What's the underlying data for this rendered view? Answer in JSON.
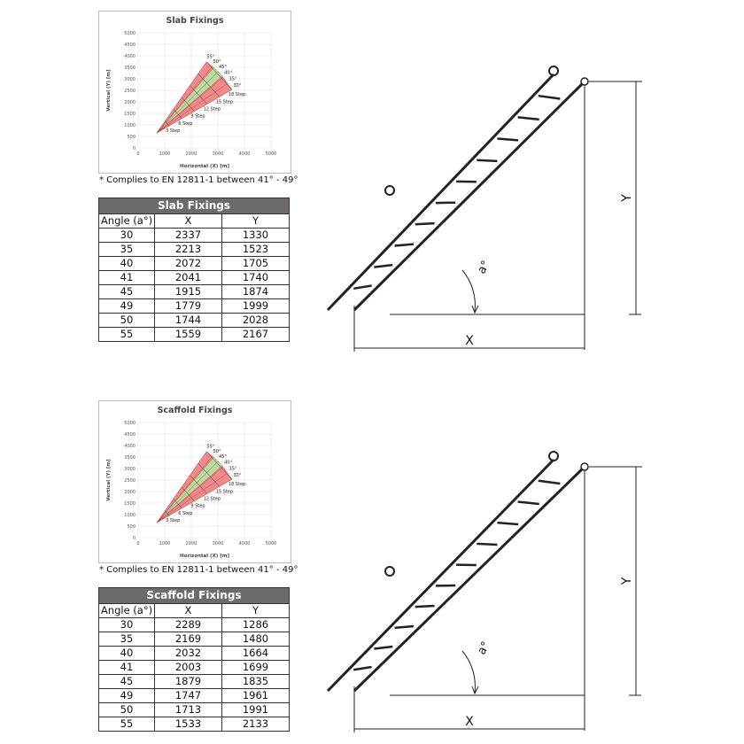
{
  "panels": [
    {
      "key": "slab",
      "chart": {
        "title": "Slab Fixings",
        "xlabel": "Horizontal (X) [m]",
        "ylabel": "Vertical (Y) [m]",
        "x_ticks": [
          "0",
          "1000",
          "2000",
          "3000",
          "4000",
          "5000"
        ],
        "y_ticks": [
          "0",
          "500",
          "1000",
          "1500",
          "2000",
          "2500",
          "3000",
          "3500",
          "4000",
          "4500",
          "5000"
        ],
        "angle_labels": [
          "55°",
          "50°",
          "45°",
          "40°",
          "35°",
          "30°"
        ],
        "step_labels": [
          "3 Step",
          "6 Step",
          "9 Step",
          "12 Step",
          "15 Step",
          "18 Step"
        ]
      },
      "note": "* Complies to EN 12811-1 between 41° - 49°",
      "table": {
        "title": "Slab Fixings",
        "headers": [
          "Angle (a°)",
          "X",
          "Y"
        ],
        "rows": [
          [
            "30",
            "2337",
            "1330"
          ],
          [
            "35",
            "2213",
            "1523"
          ],
          [
            "40",
            "2072",
            "1705"
          ],
          [
            "41",
            "2041",
            "1740"
          ],
          [
            "45",
            "1915",
            "1874"
          ],
          [
            "49",
            "1779",
            "1999"
          ],
          [
            "50",
            "1744",
            "2028"
          ],
          [
            "55",
            "1559",
            "2167"
          ]
        ]
      },
      "diagram": {
        "label_x": "X",
        "label_y": "Y",
        "label_angle": "a°"
      }
    },
    {
      "key": "scaffold",
      "chart": {
        "title": "Scaffold Fixings",
        "xlabel": "Horizontal (X) [m]",
        "ylabel": "Vertical (Y) [m]",
        "x_ticks": [
          "0",
          "1000",
          "2000",
          "3000",
          "4000",
          "5000"
        ],
        "y_ticks": [
          "0",
          "500",
          "1000",
          "1500",
          "2000",
          "2500",
          "3000",
          "3500",
          "4000",
          "4500",
          "5000"
        ],
        "angle_labels": [
          "55°",
          "50°",
          "45°",
          "40°",
          "35°",
          "30°"
        ],
        "step_labels": [
          "3 Step",
          "6 Step",
          "9 Step",
          "12 Step",
          "15 Step",
          "18 Step"
        ]
      },
      "note": "* Complies to EN 12811-1 between 41° - 49°",
      "table": {
        "title": "Scaffold Fixings",
        "headers": [
          "Angle (a°)",
          "X",
          "Y"
        ],
        "rows": [
          [
            "30",
            "2289",
            "1286"
          ],
          [
            "35",
            "2169",
            "1480"
          ],
          [
            "40",
            "2032",
            "1664"
          ],
          [
            "41",
            "2003",
            "1699"
          ],
          [
            "45",
            "1879",
            "1835"
          ],
          [
            "49",
            "1747",
            "1961"
          ],
          [
            "50",
            "1713",
            "1991"
          ],
          [
            "55",
            "1533",
            "2133"
          ]
        ]
      },
      "diagram": {
        "label_x": "X",
        "label_y": "Y",
        "label_angle": "a°"
      }
    }
  ],
  "colors": {
    "red_zone": "#f08a8a",
    "green_zone": "#b5dca0",
    "table_header": "#6d6a6a"
  }
}
